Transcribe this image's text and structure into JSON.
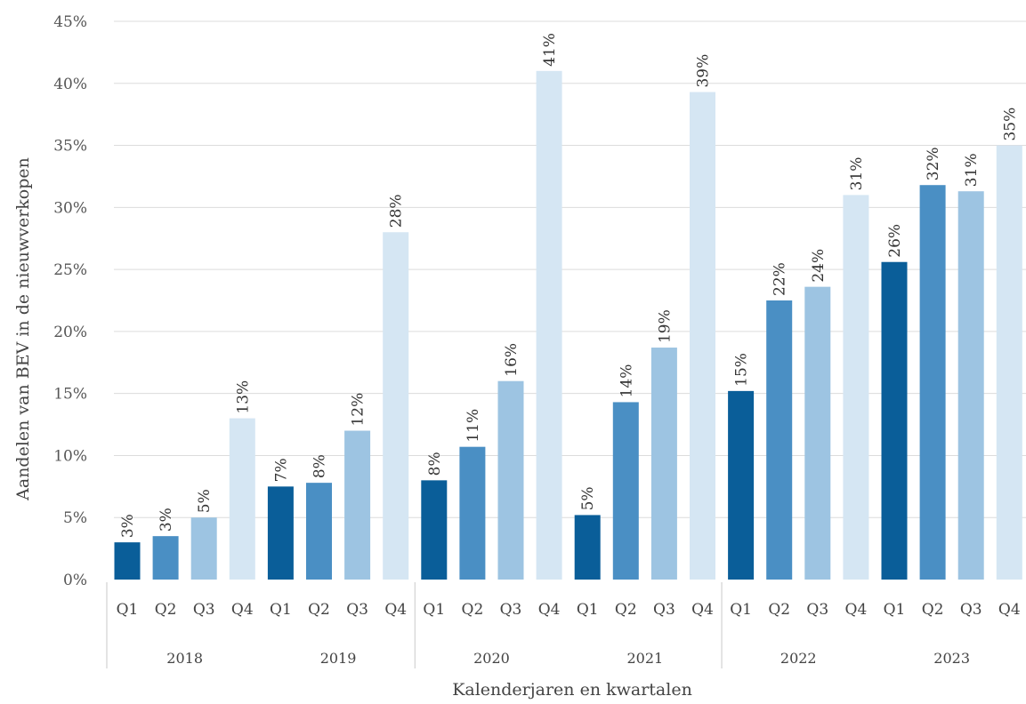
{
  "chart_data": {
    "type": "bar",
    "xlabel": "Kalenderjaren en kwartalen",
    "ylabel": "Aandelen van BEV in de nieuwverkopen",
    "ylim": [
      0,
      45
    ],
    "yticks": [
      "0%",
      "5%",
      "10%",
      "15%",
      "20%",
      "25%",
      "30%",
      "35%",
      "40%",
      "45%"
    ],
    "grid": true,
    "years": [
      "2018",
      "2019",
      "2020",
      "2021",
      "2022",
      "2023"
    ],
    "quarters": [
      "Q1",
      "Q2",
      "Q3",
      "Q4"
    ],
    "colors": {
      "Q1": "#0a5e99",
      "Q2": "#4a8fc4",
      "Q3": "#9dc4e2",
      "Q4": "#d5e6f3"
    },
    "values": [
      3,
      3.5,
      5,
      13,
      7.5,
      7.8,
      12,
      28,
      8,
      10.7,
      16,
      41,
      5.2,
      14.3,
      18.7,
      39.3,
      15.2,
      22.5,
      23.6,
      31,
      25.6,
      31.8,
      31.3,
      35
    ],
    "labels": [
      "3%",
      "3%",
      "5%",
      "13%",
      "7%",
      "8%",
      "12%",
      "28%",
      "8%",
      "11%",
      "16%",
      "41%",
      "5%",
      "14%",
      "19%",
      "39%",
      "15%",
      "22%",
      "24%",
      "31%",
      "26%",
      "32%",
      "31%",
      "35%"
    ]
  }
}
